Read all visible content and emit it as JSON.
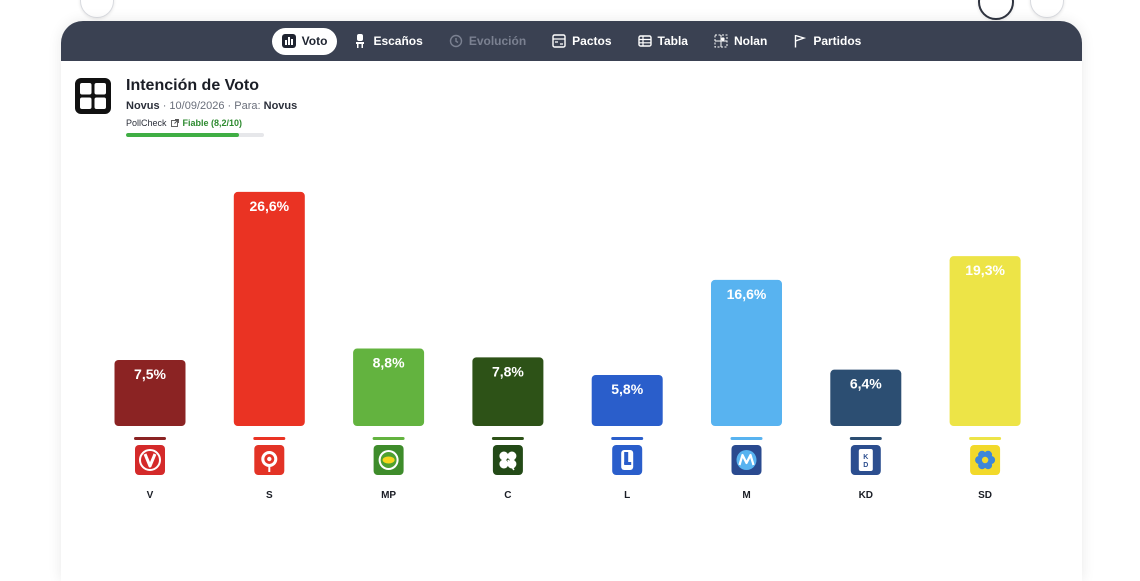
{
  "nav": {
    "tabs": [
      {
        "id": "voto",
        "label": "Voto",
        "active": true,
        "disabled": false,
        "icon": "bar-chart-icon"
      },
      {
        "id": "escanos",
        "label": "Escaños",
        "active": false,
        "disabled": false,
        "icon": "seat-icon"
      },
      {
        "id": "evolucion",
        "label": "Evolución",
        "active": false,
        "disabled": true,
        "icon": "history-icon"
      },
      {
        "id": "pactos",
        "label": "Pactos",
        "active": false,
        "disabled": false,
        "icon": "pacts-icon"
      },
      {
        "id": "tabla",
        "label": "Tabla",
        "active": false,
        "disabled": false,
        "icon": "table-icon"
      },
      {
        "id": "nolan",
        "label": "Nolan",
        "active": false,
        "disabled": false,
        "icon": "nolan-icon"
      },
      {
        "id": "partidos",
        "label": "Partidos",
        "active": false,
        "disabled": false,
        "icon": "flag-icon"
      }
    ]
  },
  "header": {
    "title": "Intención de Voto",
    "pollster": "Novus",
    "sep1": "·",
    "date": "10/09/2026",
    "sep2": "·",
    "for_label": "Para:",
    "for_value": "Novus",
    "pollcheck_label": "PollCheck",
    "reliability": "Fiable (8,2/10)",
    "reliability_score": 8.2,
    "reliability_max": 10
  },
  "chart_data": {
    "type": "bar",
    "categories": [
      "V",
      "S",
      "MP",
      "C",
      "L",
      "M",
      "KD",
      "SD"
    ],
    "values": [
      7.5,
      26.6,
      8.8,
      7.8,
      5.8,
      16.6,
      6.4,
      19.3
    ],
    "value_labels": [
      "7,5%",
      "26,6%",
      "8,8%",
      "7,8%",
      "5,8%",
      "16,6%",
      "6,4%",
      "19,3%"
    ],
    "colors": [
      "#8b2323",
      "#ea3323",
      "#63b33f",
      "#2d5217",
      "#2a5ecb",
      "#58b3f0",
      "#2c4e72",
      "#ede447"
    ],
    "icons": [
      "v-party-logo-icon",
      "s-rose-logo-icon",
      "mp-sunflower-logo-icon",
      "c-clover-logo-icon",
      "l-letter-logo-icon",
      "m-letter-logo-icon",
      "kd-letters-logo-icon",
      "sd-flower-logo-icon"
    ],
    "title": "Intención de Voto",
    "xlabel": "",
    "ylabel": "",
    "ylim": [
      0,
      27.5
    ],
    "grid": false,
    "legend": "none"
  }
}
